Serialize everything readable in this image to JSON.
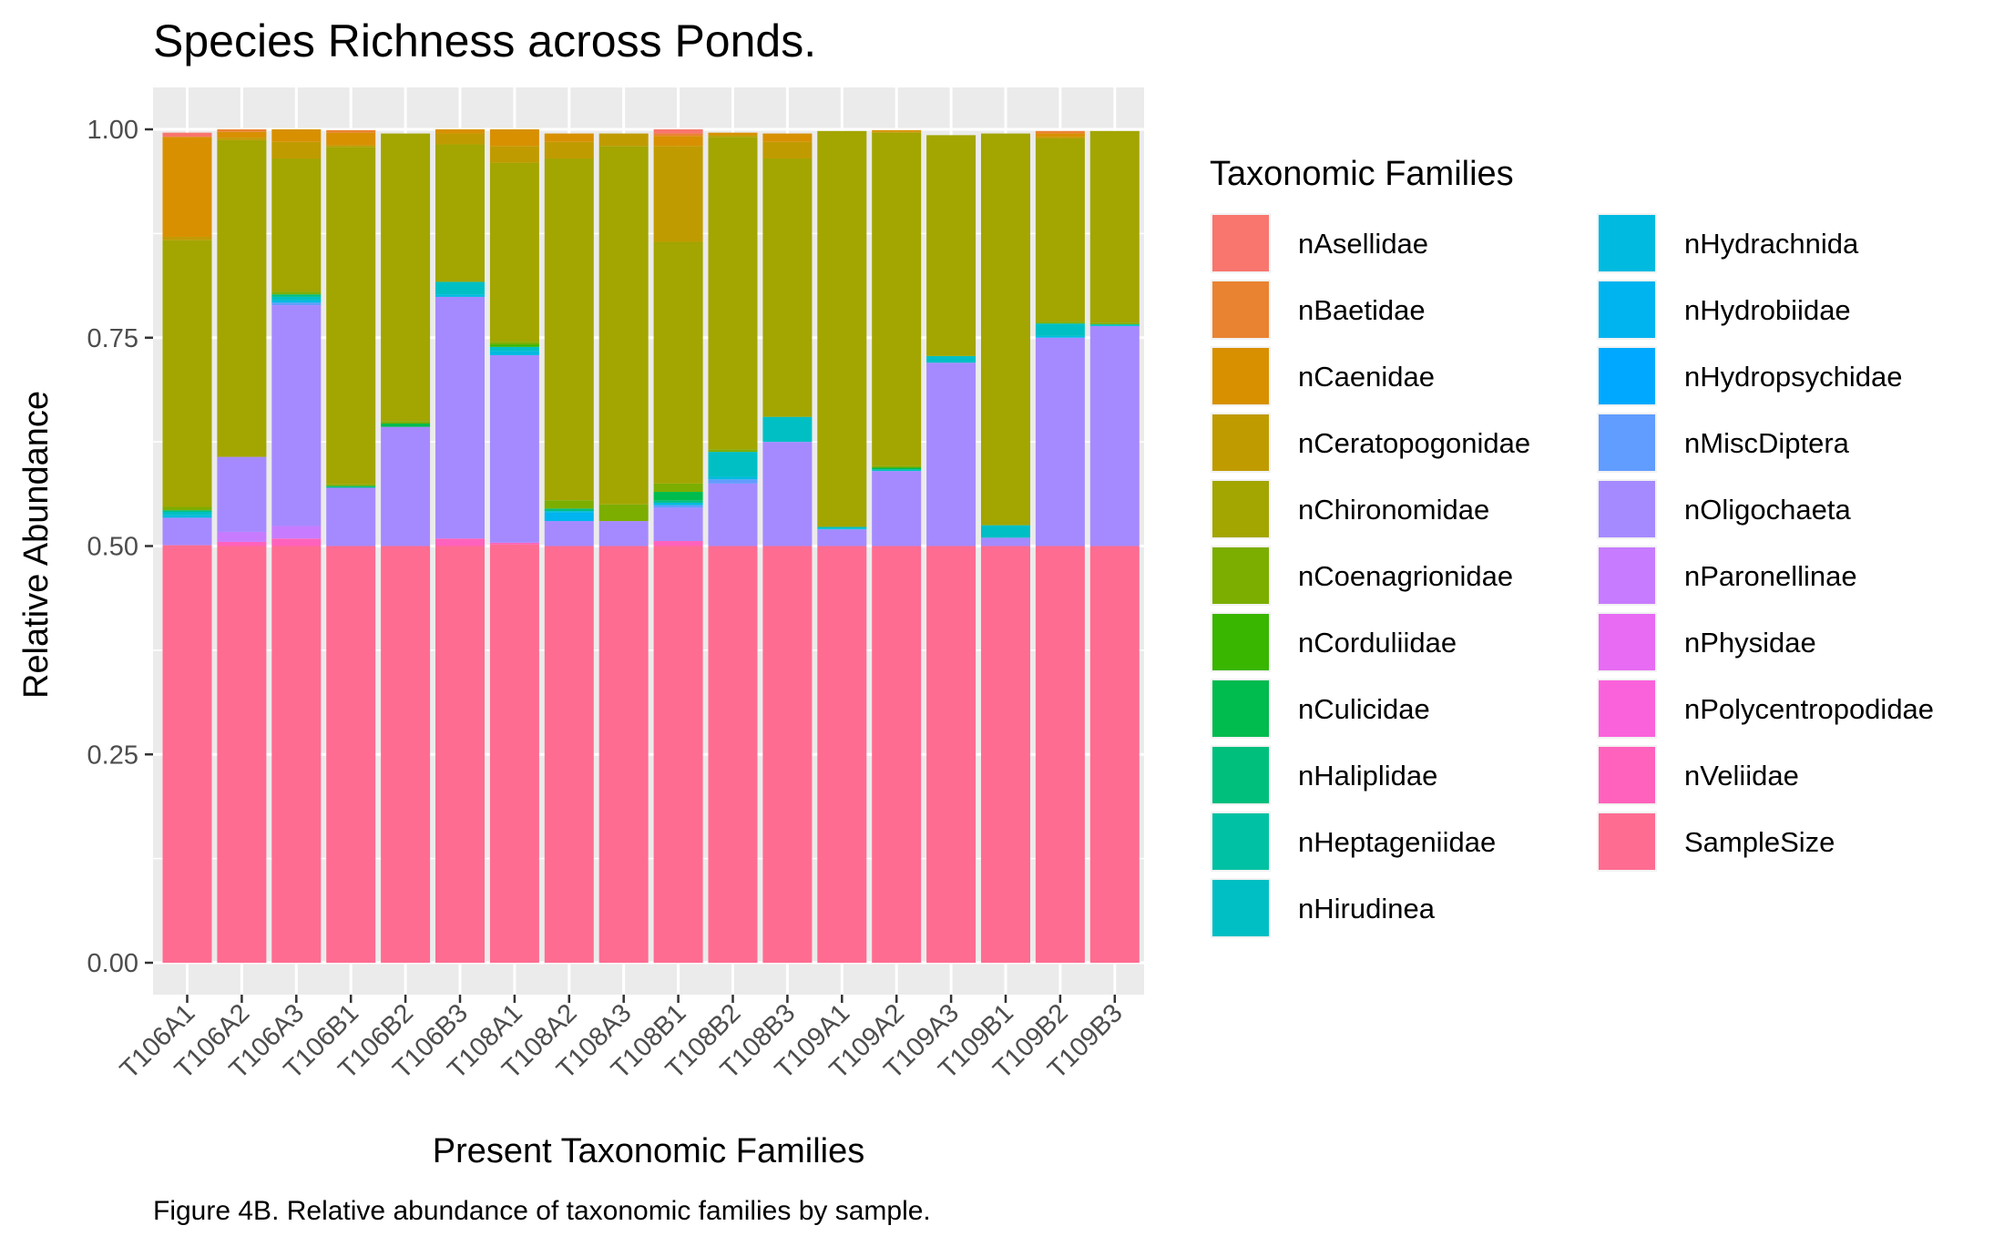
{
  "chart_data": {
    "type": "bar",
    "stacked": true,
    "title": "Species Richness across Ponds.",
    "xlabel": "Present Taxonomic Families",
    "ylabel": "Relative Abundance",
    "ylim": [
      0,
      1
    ],
    "y_ticks": [
      "0.00",
      "0.25",
      "0.50",
      "0.75",
      "1.00"
    ],
    "y_tick_values": [
      0,
      0.25,
      0.5,
      0.75,
      1.0
    ],
    "grid": true,
    "legend_title": "Taxonomic Families",
    "legend_position": "right",
    "caption": "Figure 4B. Relative abundance of taxonomic families by sample.",
    "categories": [
      "T106A1",
      "T106A2",
      "T106A3",
      "T106B1",
      "T106B2",
      "T106B3",
      "T108A1",
      "T108A2",
      "T108A3",
      "T108B1",
      "T108B2",
      "T108B3",
      "T109A1",
      "T109A2",
      "T109A3",
      "T109B1",
      "T109B2",
      "T109B3"
    ],
    "series": [
      {
        "name": "nAsellidae",
        "color": "#F8766D",
        "values": [
          0.005,
          0,
          0,
          0,
          0,
          0,
          0,
          0,
          0,
          0.005,
          0,
          0,
          0,
          0,
          0,
          0,
          0,
          0
        ]
      },
      {
        "name": "nBaetidae",
        "color": "#EA8331",
        "values": [
          0,
          0.003,
          0,
          0.003,
          0,
          0,
          0,
          0,
          0,
          0.003,
          0,
          0,
          0,
          0,
          0,
          0,
          0.003,
          0
        ]
      },
      {
        "name": "nCaenidae",
        "color": "#D89000",
        "values": [
          0.12,
          0.007,
          0.015,
          0.015,
          0,
          0.005,
          0.02,
          0.01,
          0,
          0.012,
          0.003,
          0.01,
          0,
          0.002,
          0,
          0,
          0.004,
          0
        ]
      },
      {
        "name": "nCeratopogonidae",
        "color": "#C09B00",
        "values": [
          0.004,
          0.003,
          0.02,
          0.002,
          0,
          0.013,
          0.02,
          0.02,
          0.015,
          0.115,
          0.002,
          0.02,
          0,
          0.001,
          0,
          0,
          0.002,
          0
        ]
      },
      {
        "name": "nChironomidae",
        "color": "#A3A500",
        "values": [
          0.32,
          0.38,
          0.16,
          0.405,
          0.345,
          0.165,
          0.215,
          0.41,
          0.43,
          0.29,
          0.375,
          0.31,
          0.475,
          0.4,
          0.265,
          0.47,
          0.22,
          0.23
        ]
      },
      {
        "name": "nCoenagrionidae",
        "color": "#7CAE00",
        "values": [
          0.004,
          0,
          0.003,
          0.002,
          0.003,
          0,
          0.003,
          0.01,
          0.02,
          0.01,
          0.003,
          0,
          0,
          0.002,
          0,
          0,
          0.002,
          0.002
        ]
      },
      {
        "name": "nCorduliidae",
        "color": "#39B600",
        "values": [
          0,
          0,
          0,
          0,
          0,
          0,
          0.003,
          0,
          0,
          0,
          0,
          0,
          0,
          0,
          0,
          0,
          0,
          0
        ]
      },
      {
        "name": "nCulicidae",
        "color": "#00BB4E",
        "values": [
          0,
          0,
          0,
          0,
          0.004,
          0,
          0,
          0,
          0,
          0.01,
          0,
          0,
          0,
          0.002,
          0,
          0,
          0,
          0
        ]
      },
      {
        "name": "nHaliplidae",
        "color": "#00BF7D",
        "values": [
          0.002,
          0,
          0.003,
          0.002,
          0,
          0,
          0,
          0.003,
          0,
          0.003,
          0,
          0,
          0,
          0,
          0,
          0,
          0,
          0
        ]
      },
      {
        "name": "nHeptageniidae",
        "color": "#00C1A3",
        "values": [
          0,
          0,
          0,
          0,
          0,
          0,
          0,
          0,
          0,
          0,
          0,
          0,
          0,
          0,
          0,
          0,
          0,
          0
        ]
      },
      {
        "name": "nHirudinea",
        "color": "#00BFC4",
        "values": [
          0.004,
          0,
          0.004,
          0,
          0,
          0.015,
          0.005,
          0,
          0,
          0,
          0.03,
          0.03,
          0.002,
          0.002,
          0.008,
          0.015,
          0.015,
          0.002
        ]
      },
      {
        "name": "nHydrachnida",
        "color": "#00BAE0",
        "values": [
          0.003,
          0,
          0.003,
          0,
          0,
          0.003,
          0.005,
          0.002,
          0,
          0.003,
          0.003,
          0,
          0.001,
          0,
          0,
          0,
          0.002,
          0
        ]
      },
      {
        "name": "nHydrobiidae",
        "color": "#00B4EF",
        "values": [
          0,
          0,
          0,
          0,
          0,
          0,
          0,
          0.01,
          0,
          0,
          0,
          0,
          0,
          0,
          0,
          0,
          0,
          0
        ]
      },
      {
        "name": "nHydropsychidae",
        "color": "#00A9FF",
        "values": [
          0,
          0,
          0,
          0,
          0,
          0,
          0,
          0,
          0,
          0,
          0,
          0,
          0,
          0,
          0,
          0,
          0,
          0
        ]
      },
      {
        "name": "nMiscDiptera",
        "color": "#619CFF",
        "values": [
          0,
          0,
          0.003,
          0,
          0,
          0,
          0,
          0,
          0,
          0.003,
          0.005,
          0,
          0,
          0,
          0,
          0,
          0,
          0
        ]
      },
      {
        "name": "nOligochaeta",
        "color": "#A58AFF",
        "values": [
          0.033,
          0.09,
          0.265,
          0.07,
          0.143,
          0.29,
          0.225,
          0.03,
          0.03,
          0.04,
          0.075,
          0.125,
          0.02,
          0.09,
          0.22,
          0.01,
          0.25,
          0.264
        ]
      },
      {
        "name": "nParonellinae",
        "color": "#C77CFF",
        "values": [
          0,
          0.012,
          0.015,
          0,
          0,
          0,
          0,
          0,
          0,
          0,
          0,
          0,
          0,
          0,
          0,
          0,
          0,
          0
        ]
      },
      {
        "name": "nPhysidae",
        "color": "#E76BF3",
        "values": [
          0,
          0,
          0,
          0,
          0,
          0,
          0,
          0,
          0,
          0,
          0,
          0,
          0,
          0,
          0,
          0,
          0,
          0
        ]
      },
      {
        "name": "nPolycentropodidae",
        "color": "#FA62DB",
        "values": [
          0,
          0,
          0,
          0,
          0,
          0,
          0,
          0,
          0,
          0,
          0,
          0,
          0,
          0,
          0,
          0,
          0,
          0
        ]
      },
      {
        "name": "nVeliidae",
        "color": "#FF62BC",
        "values": [
          0,
          0.005,
          0.009,
          0,
          0,
          0.009,
          0.002,
          0,
          0,
          0.006,
          0,
          0,
          0,
          0,
          0,
          0,
          0,
          0
        ]
      },
      {
        "name": "SampleSize",
        "color": "#FF6C91",
        "values": [
          0.501,
          0.5,
          0.5,
          0.5,
          0.5,
          0.5,
          0.502,
          0.5,
          0.5,
          0.5,
          0.5,
          0.5,
          0.5,
          0.5,
          0.5,
          0.5,
          0.5,
          0.5
        ]
      }
    ]
  }
}
